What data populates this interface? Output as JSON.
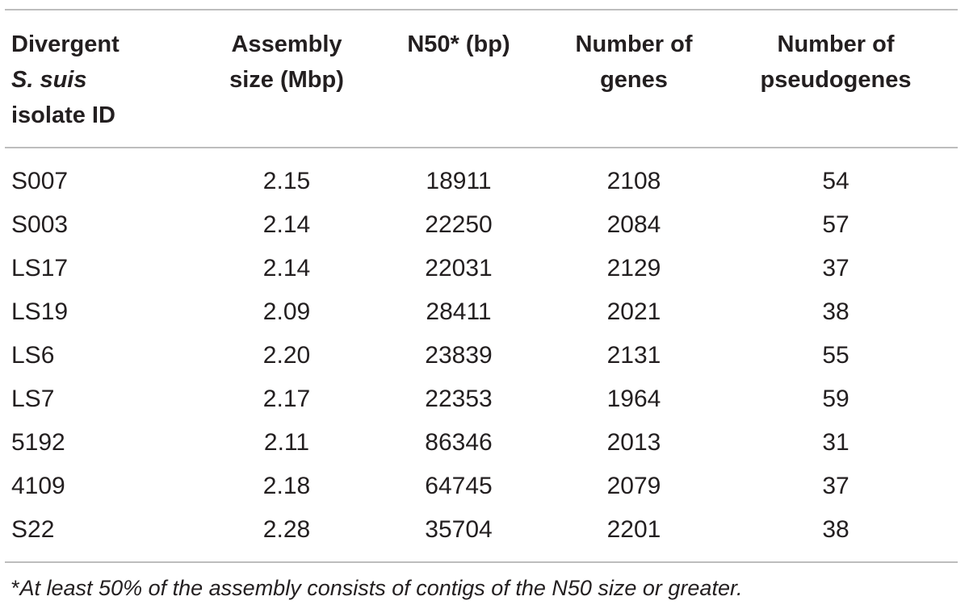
{
  "table": {
    "headers": [
      [
        "Divergent",
        "S. suis",
        "isolate ID"
      ],
      [
        "Assembly",
        "size (Mbp)"
      ],
      [
        "N50* (bp)"
      ],
      [
        "Number of",
        "genes"
      ],
      [
        "Number of",
        "pseudogenes"
      ]
    ],
    "rows": [
      [
        "S007",
        "2.15",
        "18911",
        "2108",
        "54"
      ],
      [
        "S003",
        "2.14",
        "22250",
        "2084",
        "57"
      ],
      [
        "LS17",
        "2.14",
        "22031",
        "2129",
        "37"
      ],
      [
        "LS19",
        "2.09",
        "28411",
        "2021",
        "38"
      ],
      [
        "LS6",
        "2.20",
        "23839",
        "2131",
        "55"
      ],
      [
        "LS7",
        "2.17",
        "22353",
        "1964",
        "59"
      ],
      [
        "5192",
        "2.11",
        "86346",
        "2013",
        "31"
      ],
      [
        "4109",
        "2.18",
        "64745",
        "2079",
        "37"
      ],
      [
        "S22",
        "2.28",
        "35704",
        "2201",
        "38"
      ]
    ]
  },
  "footnote": {
    "marker": "*",
    "text": "At least 50% of the assembly consists of contigs of the N50 size or greater."
  }
}
